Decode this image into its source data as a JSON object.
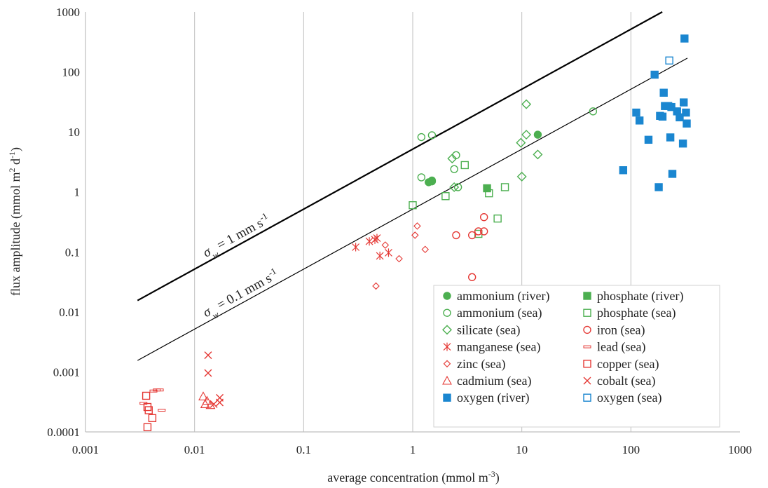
{
  "chart_data": {
    "type": "scatter",
    "xlabel": "average concentration (mmol m",
    "xlabel_sup": "-3",
    "xlabel_end": ")",
    "ylabel": "flux amplitude (mmol m",
    "ylabel_sup1": "2",
    "ylabel_mid": " d",
    "ylabel_sup2": "-1",
    "ylabel_end": ")",
    "x_scale": "log",
    "y_scale": "log",
    "xlim": [
      0.001,
      1000
    ],
    "ylim": [
      0.0001,
      1000
    ],
    "x_ticks": [
      {
        "value": 0.001,
        "label": "0.001"
      },
      {
        "value": 0.01,
        "label": "0.01"
      },
      {
        "value": 0.1,
        "label": "0.1"
      },
      {
        "value": 1,
        "label": "1"
      },
      {
        "value": 10,
        "label": "10"
      },
      {
        "value": 100,
        "label": "100"
      },
      {
        "value": 1000,
        "label": "1000"
      }
    ],
    "y_ticks": [
      {
        "value": 0.0001,
        "label": "0.0001"
      },
      {
        "value": 0.001,
        "label": "0.001"
      },
      {
        "value": 0.01,
        "label": "0.01"
      },
      {
        "value": 0.1,
        "label": "0.1"
      },
      {
        "value": 1,
        "label": "1"
      },
      {
        "value": 10,
        "label": "10"
      },
      {
        "value": 100,
        "label": "100"
      },
      {
        "value": 1000,
        "label": "1000"
      }
    ],
    "grid": "vertical",
    "legend_position": "bottom-right",
    "colors": {
      "green": "#4caf50",
      "red": "#e53935",
      "blue": "#1a86d0",
      "line": "#000000",
      "grid": "#bfbfbf"
    },
    "reference_lines": [
      {
        "label_sym": "σ",
        "label_sub": "w",
        "label_text": " = 1 mm s",
        "label_sup": "-1",
        "x": [
          0.003,
          330
        ],
        "y": [
          0.0155,
          1700
        ],
        "width": 2.2
      },
      {
        "label_sym": "σ",
        "label_sub": "w",
        "label_text": " = 0.1 mm s",
        "label_sup": "-1",
        "x": [
          0.003,
          330
        ],
        "y": [
          0.00155,
          170
        ],
        "width": 1.2
      }
    ],
    "series": [
      {
        "name": "ammonium (river)",
        "color": "#4caf50",
        "marker": "circle",
        "filled": true,
        "points": [
          [
            1.4,
            1.45
          ],
          [
            1.5,
            1.55
          ],
          [
            14,
            9.0
          ]
        ]
      },
      {
        "name": "phosphate (river)",
        "color": "#4caf50",
        "marker": "square",
        "filled": true,
        "points": [
          [
            4.8,
            1.15
          ]
        ]
      },
      {
        "name": "ammonium (sea)",
        "color": "#4caf50",
        "marker": "circle",
        "filled": false,
        "points": [
          [
            1.2,
            8.2
          ],
          [
            1.5,
            8.8
          ],
          [
            1.2,
            1.75
          ],
          [
            1.5,
            1.5
          ],
          [
            2.5,
            4.1
          ],
          [
            2.6,
            1.2
          ],
          [
            2.4,
            2.4
          ],
          [
            45,
            22
          ]
        ]
      },
      {
        "name": "phosphate (sea)",
        "color": "#4caf50",
        "marker": "square",
        "filled": false,
        "points": [
          [
            1.0,
            0.6
          ],
          [
            2.0,
            0.85
          ],
          [
            3.0,
            2.8
          ],
          [
            5.0,
            0.95
          ],
          [
            6.0,
            0.36
          ],
          [
            7.0,
            1.2
          ],
          [
            4.0,
            0.2
          ]
        ]
      },
      {
        "name": "silicate (sea)",
        "color": "#4caf50",
        "marker": "diamond",
        "filled": false,
        "points": [
          [
            2.3,
            3.6
          ],
          [
            2.4,
            1.2
          ],
          [
            9.8,
            6.6
          ],
          [
            11,
            9.0
          ],
          [
            11,
            29
          ],
          [
            10,
            1.8
          ],
          [
            14,
            4.2
          ]
        ]
      },
      {
        "name": "iron (sea)",
        "color": "#e53935",
        "marker": "circle",
        "filled": false,
        "points": [
          [
            2.5,
            0.19
          ],
          [
            3.5,
            0.19
          ],
          [
            4.0,
            0.22
          ],
          [
            4.5,
            0.22
          ],
          [
            4.5,
            0.38
          ],
          [
            3.5,
            0.038
          ]
        ]
      },
      {
        "name": "manganese (sea)",
        "color": "#e53935",
        "marker": "star",
        "filled": false,
        "points": [
          [
            0.3,
            0.12
          ],
          [
            0.4,
            0.15
          ],
          [
            0.45,
            0.16
          ],
          [
            0.47,
            0.17
          ],
          [
            0.5,
            0.086
          ],
          [
            0.6,
            0.097
          ]
        ]
      },
      {
        "name": "lead (sea)",
        "color": "#e53935",
        "marker": "dash",
        "filled": false,
        "points": [
          [
            0.0034,
            0.0003
          ],
          [
            0.0042,
            0.00048
          ],
          [
            0.0045,
            0.0005
          ],
          [
            0.0048,
            0.0005
          ],
          [
            0.005,
            0.00023
          ]
        ]
      },
      {
        "name": "zinc (sea)",
        "color": "#e53935",
        "marker": "diamond-small",
        "filled": false,
        "points": [
          [
            0.46,
            0.027
          ],
          [
            0.56,
            0.13
          ],
          [
            0.75,
            0.077
          ],
          [
            1.05,
            0.19
          ],
          [
            1.1,
            0.27
          ],
          [
            1.3,
            0.11
          ]
        ]
      },
      {
        "name": "copper (sea)",
        "color": "#e53935",
        "marker": "square",
        "filled": false,
        "points": [
          [
            0.0036,
            0.0004
          ],
          [
            0.0037,
            0.00026
          ],
          [
            0.0038,
            0.00023
          ],
          [
            0.0041,
            0.00017
          ],
          [
            0.0037,
            0.00012
          ]
        ]
      },
      {
        "name": "cadmium (sea)",
        "color": "#e53935",
        "marker": "triangle",
        "filled": false,
        "points": [
          [
            0.012,
            0.00039
          ],
          [
            0.0125,
            0.00029
          ],
          [
            0.013,
            0.00033
          ],
          [
            0.014,
            0.00028
          ]
        ]
      },
      {
        "name": "cobalt (sea)",
        "color": "#e53935",
        "marker": "x",
        "filled": false,
        "points": [
          [
            0.0133,
            0.0019
          ],
          [
            0.0133,
            0.00096
          ],
          [
            0.015,
            0.00029
          ],
          [
            0.017,
            0.00031
          ],
          [
            0.017,
            0.00037
          ]
        ]
      },
      {
        "name": "oxygen (river)",
        "color": "#1a86d0",
        "marker": "square",
        "filled": true,
        "points": [
          [
            85,
            2.3
          ],
          [
            112,
            21
          ],
          [
            120,
            15.5
          ],
          [
            145,
            7.4
          ],
          [
            165,
            90
          ],
          [
            180,
            1.2
          ],
          [
            185,
            18.5
          ],
          [
            195,
            18
          ],
          [
            200,
            45
          ],
          [
            205,
            27
          ],
          [
            220,
            27
          ],
          [
            230,
            8.1
          ],
          [
            235,
            26
          ],
          [
            240,
            2.0
          ],
          [
            265,
            22
          ],
          [
            280,
            17.5
          ],
          [
            300,
            6.4
          ],
          [
            305,
            31
          ],
          [
            310,
            360
          ],
          [
            320,
            21
          ],
          [
            325,
            13.8
          ]
        ]
      },
      {
        "name": "oxygen (sea)",
        "color": "#1a86d0",
        "marker": "square",
        "filled": false,
        "points": [
          [
            225,
            155
          ]
        ]
      }
    ]
  }
}
